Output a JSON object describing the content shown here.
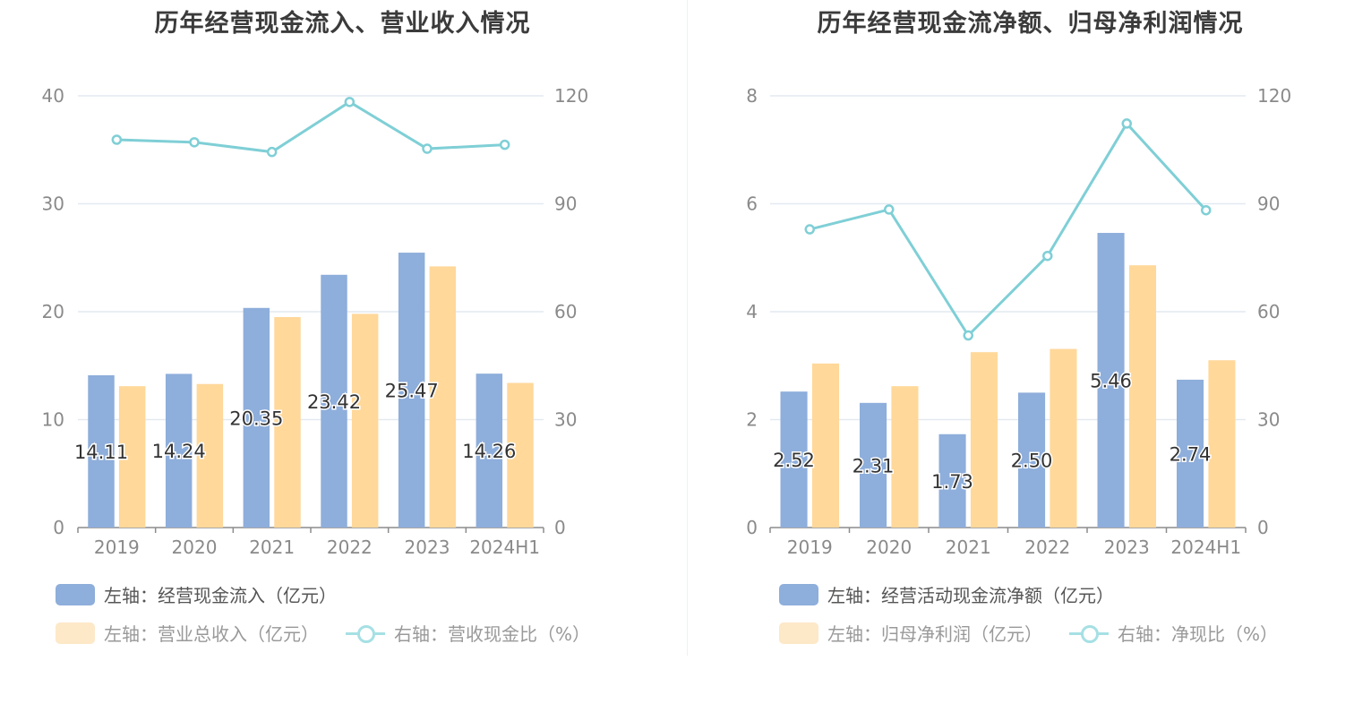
{
  "colors": {
    "bar_primary": "#8eaedb",
    "bar_secondary": "#ffd89a",
    "line": "#7fcfd6",
    "grid": "#e3e9f1",
    "axis_text": "#8a8a8a",
    "legend_primary_swatch": "#8eaedb",
    "legend_secondary_swatch": "#fde8c8",
    "legend_line_faded": "#a6e0e4"
  },
  "charts": [
    {
      "title": "历年经营现金流入、营业收入情况",
      "legend": {
        "primary": "左轴：经营现金流入（亿元）",
        "secondary": "左轴：营业总收入（亿元）",
        "line": "右轴：营收现金比（%）"
      }
    },
    {
      "title": "历年经营现金流净额、归母净利润情况",
      "legend": {
        "primary": "左轴：经营活动现金流净额（亿元）",
        "secondary": "左轴：归母净利润（亿元）",
        "line": "右轴：净现比（%）"
      }
    }
  ],
  "chart_data": [
    {
      "type": "bar",
      "title": "历年经营现金流入、营业收入情况",
      "categories": [
        "2019",
        "2020",
        "2021",
        "2022",
        "2023",
        "2024H1"
      ],
      "left_axis": {
        "ylim": [
          0,
          40
        ],
        "ticks": [
          "0",
          "10",
          "20",
          "30",
          "40"
        ]
      },
      "right_axis": {
        "ylim": [
          0,
          120
        ],
        "ticks": [
          "0",
          "30",
          "60",
          "90",
          "120"
        ]
      },
      "series": [
        {
          "name": "左轴：经营现金流入（亿元）",
          "axis": "left",
          "type": "bar",
          "values": [
            14.11,
            14.24,
            20.35,
            23.42,
            25.47,
            14.26
          ],
          "labels": [
            "14.11",
            "14.24",
            "20.35",
            "23.42",
            "25.47",
            "14.26"
          ]
        },
        {
          "name": "左轴：营业总收入（亿元）",
          "axis": "left",
          "type": "bar",
          "values": [
            13.1,
            13.3,
            19.5,
            19.8,
            24.2,
            13.4
          ]
        },
        {
          "name": "右轴：营收现金比（%）",
          "axis": "right",
          "type": "line",
          "values": [
            107.8,
            107.1,
            104.4,
            118.3,
            105.3,
            106.4
          ]
        }
      ]
    },
    {
      "type": "bar",
      "title": "历年经营现金流净额、归母净利润情况",
      "categories": [
        "2019",
        "2020",
        "2021",
        "2022",
        "2023",
        "2024H1"
      ],
      "left_axis": {
        "ylim": [
          0,
          8
        ],
        "ticks": [
          "0",
          "2",
          "4",
          "6",
          "8"
        ]
      },
      "right_axis": {
        "ylim": [
          0,
          120
        ],
        "ticks": [
          "0",
          "30",
          "60",
          "90",
          "120"
        ]
      },
      "series": [
        {
          "name": "左轴：经营活动现金流净额（亿元）",
          "axis": "left",
          "type": "bar",
          "values": [
            2.52,
            2.31,
            1.73,
            2.5,
            5.46,
            2.74
          ],
          "labels": [
            "2.52",
            "2.31",
            "1.73",
            "2.50",
            "5.46",
            "2.74"
          ]
        },
        {
          "name": "左轴：归母净利润（亿元）",
          "axis": "left",
          "type": "bar",
          "values": [
            3.04,
            2.62,
            3.25,
            3.31,
            4.86,
            3.1
          ]
        },
        {
          "name": "右轴：净现比（%）",
          "axis": "right",
          "type": "line",
          "values": [
            82.9,
            88.4,
            53.4,
            75.5,
            112.3,
            88.2
          ]
        }
      ]
    }
  ]
}
